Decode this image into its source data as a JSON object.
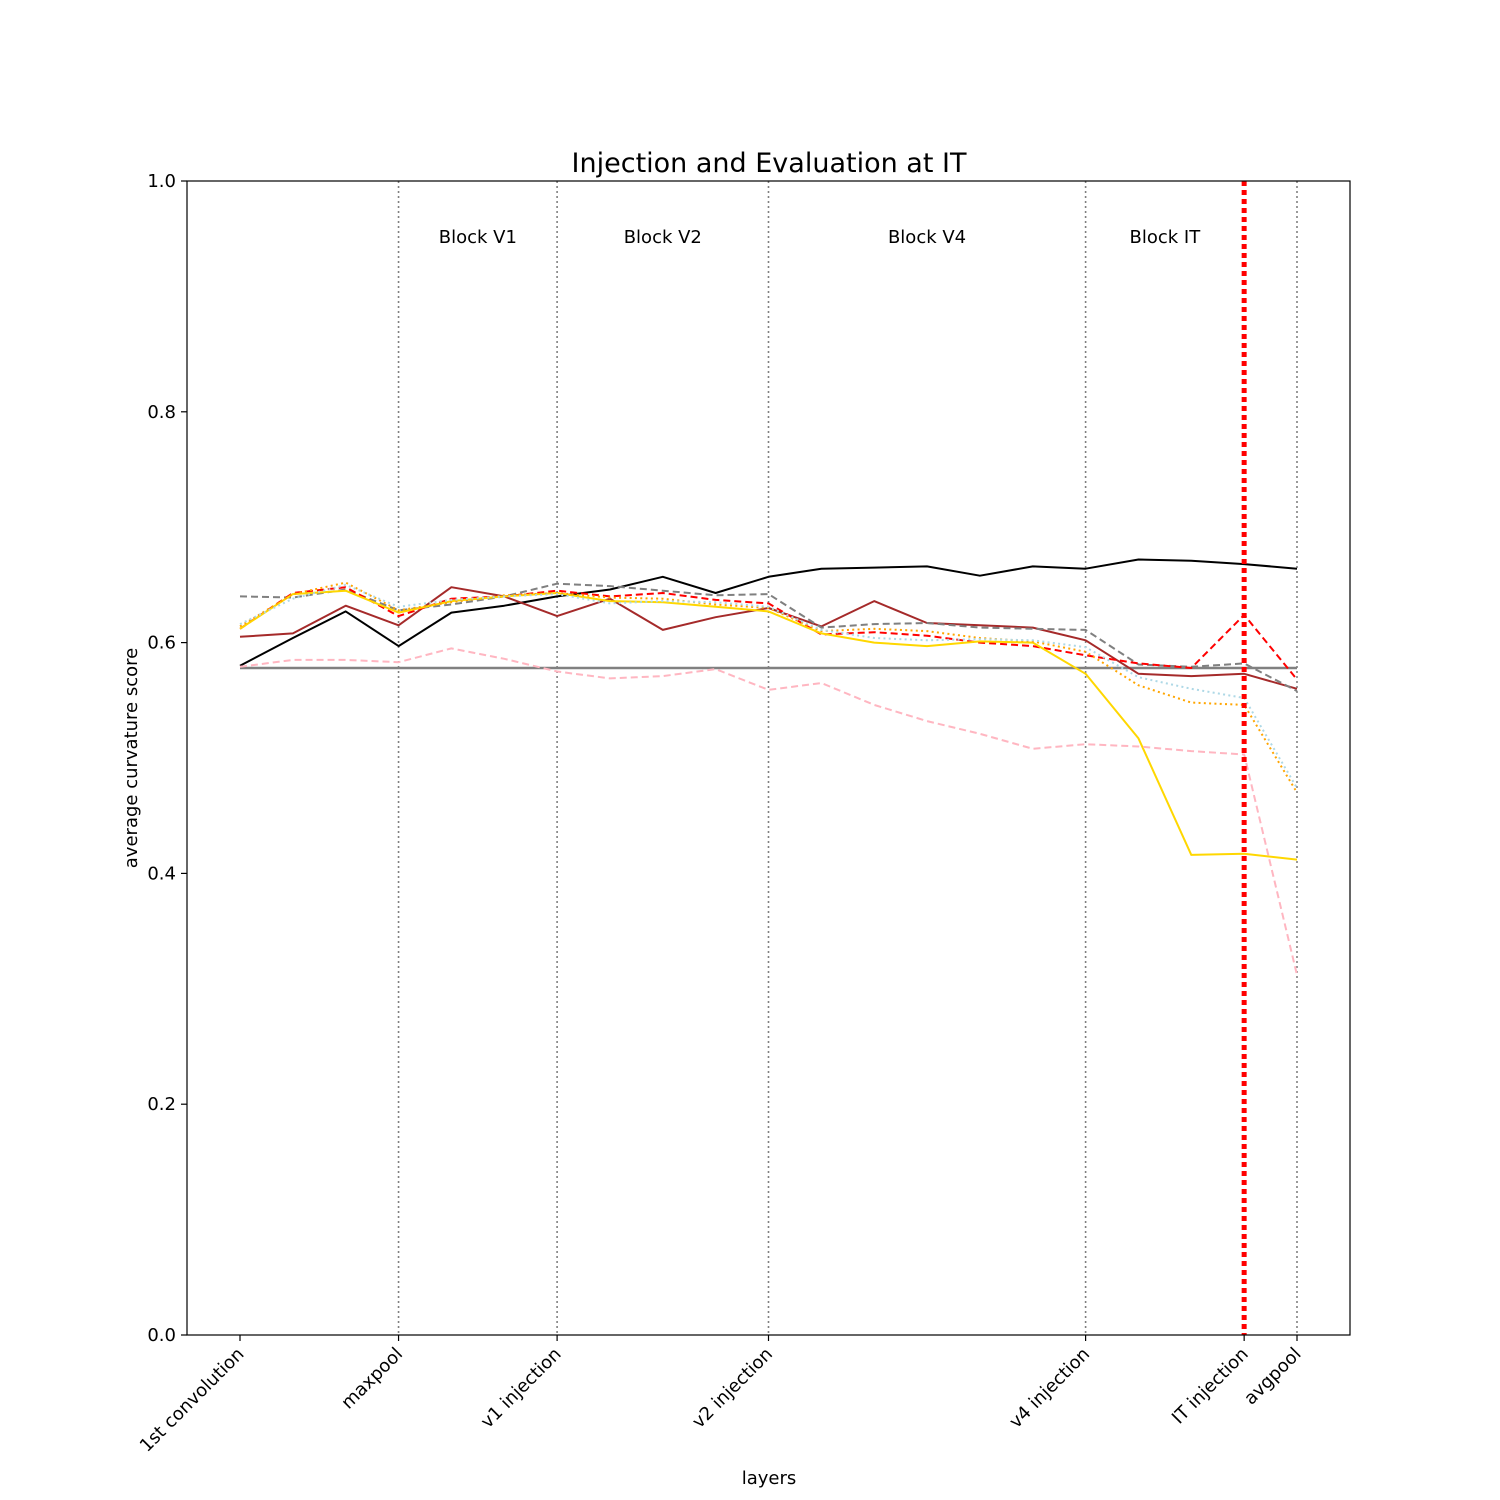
{
  "chart_data": {
    "type": "line",
    "title": "Injection and Evaluation at IT",
    "xlabel": "layers",
    "ylabel": "average curvature score",
    "ylim": [
      0,
      1.0
    ],
    "yticks": [
      "0.0",
      "0.2",
      "0.4",
      "0.6",
      "0.8",
      "1.0"
    ],
    "x_tick_labels": [
      {
        "label": "1st convolution",
        "index": 0
      },
      {
        "label": "maxpool",
        "index": 3
      },
      {
        "label": "v1 injection",
        "index": 6
      },
      {
        "label": "v2 injection",
        "index": 10
      },
      {
        "label": "v4 injection",
        "index": 16
      },
      {
        "label": "IT injection",
        "index": 19
      },
      {
        "label": "avgpool",
        "index": 20
      }
    ],
    "n_points": 21,
    "block_labels": [
      {
        "label": "Block V1",
        "x": 4.5
      },
      {
        "label": "Block V2",
        "x": 8
      },
      {
        "label": "Block V4",
        "x": 13
      },
      {
        "label": "Block IT",
        "x": 17.5
      }
    ],
    "block_boundaries": [
      3,
      6,
      10,
      16,
      20
    ],
    "injection_line_x": 19,
    "reference_line": {
      "y": 0.578,
      "color": "#808080"
    },
    "series": [
      {
        "color": "#000000",
        "style": "solid",
        "values": [
          0.58,
          0.604,
          0.627,
          0.597,
          0.626,
          0.632,
          0.64,
          0.646,
          0.657,
          0.643,
          0.657,
          0.664,
          0.665,
          0.666,
          0.658,
          0.666,
          0.664,
          0.672,
          0.671,
          0.668,
          0.664
        ]
      },
      {
        "color": "#a52a2a",
        "style": "solid",
        "values": [
          0.605,
          0.608,
          0.632,
          0.615,
          0.648,
          0.64,
          0.623,
          0.638,
          0.611,
          0.622,
          0.63,
          0.614,
          0.636,
          0.617,
          0.615,
          0.613,
          0.602,
          0.573,
          0.571,
          0.573,
          0.56
        ]
      },
      {
        "color": "#808080",
        "style": "dashed",
        "values": [
          0.64,
          0.639,
          0.646,
          0.628,
          0.633,
          0.64,
          0.651,
          0.649,
          0.645,
          0.641,
          0.642,
          0.613,
          0.616,
          0.617,
          0.613,
          0.612,
          0.611,
          0.581,
          0.579,
          0.582,
          0.558
        ]
      },
      {
        "color": "#ff0000",
        "style": "dashed",
        "values": [
          0.612,
          0.643,
          0.648,
          0.623,
          0.638,
          0.64,
          0.645,
          0.64,
          0.643,
          0.637,
          0.634,
          0.607,
          0.609,
          0.606,
          0.6,
          0.597,
          0.589,
          0.582,
          0.578,
          0.624,
          0.568
        ]
      },
      {
        "color": "#ffd700",
        "style": "solid",
        "values": [
          0.612,
          0.642,
          0.645,
          0.626,
          0.636,
          0.64,
          0.643,
          0.636,
          0.635,
          0.631,
          0.627,
          0.608,
          0.6,
          0.597,
          0.601,
          0.6,
          0.573,
          0.517,
          0.416,
          0.417,
          0.412
        ]
      },
      {
        "color": "#ffa500",
        "style": "dotted",
        "values": [
          0.614,
          0.642,
          0.652,
          0.628,
          0.635,
          0.641,
          0.643,
          0.639,
          0.638,
          0.633,
          0.63,
          0.61,
          0.612,
          0.61,
          0.604,
          0.601,
          0.592,
          0.563,
          0.548,
          0.546,
          0.47
        ]
      },
      {
        "color": "#add8e6",
        "style": "dotted",
        "values": [
          0.616,
          0.638,
          0.65,
          0.631,
          0.637,
          0.64,
          0.642,
          0.634,
          0.636,
          0.635,
          0.631,
          0.611,
          0.604,
          0.602,
          0.603,
          0.602,
          0.596,
          0.57,
          0.56,
          0.552,
          0.474
        ]
      },
      {
        "color": "#ffb6c1",
        "style": "dashed",
        "values": [
          0.579,
          0.585,
          0.585,
          0.583,
          0.595,
          0.586,
          0.575,
          0.569,
          0.571,
          0.577,
          0.559,
          0.565,
          0.546,
          0.532,
          0.521,
          0.508,
          0.512,
          0.51,
          0.506,
          0.503,
          0.312
        ]
      }
    ]
  }
}
